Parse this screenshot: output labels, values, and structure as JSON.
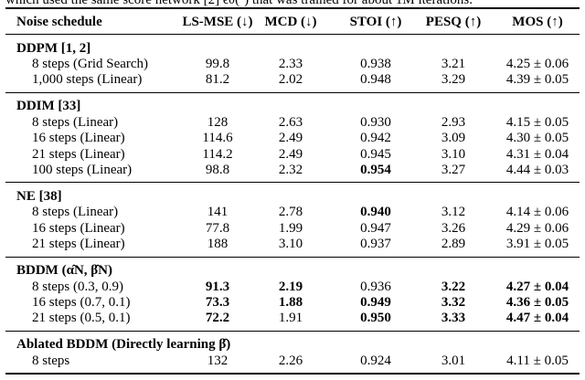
{
  "caption": "which used the same score network [2] ϵθ(·) that was trained for about 1M iterations.",
  "table": {
    "header": [
      "Noise schedule",
      "LS-MSE (↓)",
      "MCD (↓)",
      "STOI (↑)",
      "PESQ (↑)",
      "MOS (↑)"
    ],
    "sections": [
      {
        "title": "DDPM [1, 2]",
        "rows": [
          {
            "cells": [
              "8 steps (Grid Search)",
              "99.8",
              "2.33",
              "0.938",
              "3.21",
              "4.25 ± 0.06"
            ],
            "bold": []
          },
          {
            "cells": [
              "1,000 steps (Linear)",
              "81.2",
              "2.02",
              "0.948",
              "3.29",
              "4.39 ± 0.05"
            ],
            "bold": []
          }
        ]
      },
      {
        "title": "DDIM [33]",
        "rows": [
          {
            "cells": [
              "8 steps (Linear)",
              "128",
              "2.63",
              "0.930",
              "2.93",
              "4.15 ± 0.05"
            ],
            "bold": []
          },
          {
            "cells": [
              "16 steps (Linear)",
              "114.6",
              "2.49",
              "0.942",
              "3.09",
              "4.30 ± 0.05"
            ],
            "bold": []
          },
          {
            "cells": [
              "21 steps (Linear)",
              "114.2",
              "2.49",
              "0.945",
              "3.10",
              "4.31 ± 0.04"
            ],
            "bold": []
          },
          {
            "cells": [
              "100 steps (Linear)",
              "98.8",
              "2.32",
              "0.954",
              "3.27",
              "4.44 ± 0.03"
            ],
            "bold": [
              3
            ]
          }
        ]
      },
      {
        "title": "NE [38]",
        "rows": [
          {
            "cells": [
              "8 steps (Linear)",
              "141",
              "2.78",
              "0.940",
              "3.12",
              "4.14 ± 0.06"
            ],
            "bold": [
              3
            ]
          },
          {
            "cells": [
              "16 steps (Linear)",
              "77.8",
              "1.99",
              "0.947",
              "3.26",
              "4.29 ± 0.06"
            ],
            "bold": []
          },
          {
            "cells": [
              "21 steps (Linear)",
              "188",
              "3.10",
              "0.937",
              "2.89",
              "3.91 ± 0.05"
            ],
            "bold": []
          }
        ]
      },
      {
        "title": "BDDM (α̂N, β̂N)",
        "rows": [
          {
            "cells": [
              "8 steps (0.3, 0.9)",
              "91.3",
              "2.19",
              "0.936",
              "3.22",
              "4.27 ± 0.04"
            ],
            "bold": [
              1,
              2,
              4,
              5
            ]
          },
          {
            "cells": [
              "16 steps (0.7, 0.1)",
              "73.3",
              "1.88",
              "0.949",
              "3.32",
              "4.36 ± 0.05"
            ],
            "bold": [
              1,
              2,
              3,
              4,
              5
            ]
          },
          {
            "cells": [
              "21 steps (0.5, 0.1)",
              "72.2",
              "1.91",
              "0.950",
              "3.33",
              "4.47 ± 0.04"
            ],
            "bold": [
              1,
              3,
              4,
              5
            ]
          }
        ]
      },
      {
        "title": "Ablated BDDM (Directly learning β̂)",
        "rows": [
          {
            "cells": [
              "8 steps",
              "132",
              "2.26",
              "0.924",
              "3.01",
              "4.11 ± 0.05"
            ],
            "bold": []
          }
        ]
      }
    ]
  }
}
